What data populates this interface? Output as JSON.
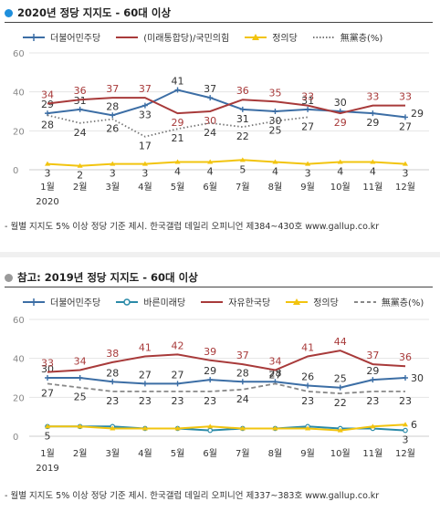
{
  "panel1": {
    "title": "2020년 정당 지지도 - 60대 이상",
    "bullet_color": "#1f8fdc",
    "note": "- 월별 지지도 5% 이상 정당 기준 제시. 한국갤럽 데일리 오피니언 제384~430호 www.gallup.co.kr",
    "chart_data": {
      "type": "line",
      "categories": [
        "1월",
        "2월",
        "3월",
        "4월",
        "5월",
        "6월",
        "7월",
        "8월",
        "9월",
        "10월",
        "11월",
        "12월"
      ],
      "year_label": "2020",
      "ylim": [
        0,
        60
      ],
      "yticks": [
        0,
        20,
        40,
        60
      ],
      "grid": true,
      "series": [
        {
          "name": "더불어민주당",
          "color": "#3c6ea5",
          "style": "plus",
          "values": [
            29,
            31,
            28,
            33,
            41,
            37,
            31,
            30,
            31,
            30,
            29,
            27
          ],
          "label_pos": [
            "above",
            "above",
            "above",
            "below",
            "above",
            "above",
            "below",
            "below",
            "above",
            "above",
            "below",
            "below"
          ]
        },
        {
          "name": "(미래통합당)/국민의힘",
          "color": "#a83a3a",
          "style": "solid",
          "values": [
            34,
            36,
            37,
            37,
            29,
            30,
            36,
            35,
            33,
            29,
            33,
            33
          ],
          "label_pos": [
            "above",
            "above",
            "above",
            "above",
            "below",
            "below",
            "above",
            "above",
            "above",
            "below",
            "above",
            "above"
          ]
        },
        {
          "name": "정의당",
          "color": "#f2c40f",
          "style": "triangle",
          "values": [
            3,
            2,
            3,
            3,
            4,
            4,
            5,
            4,
            3,
            4,
            4,
            3
          ],
          "label_pos": [
            "below",
            "below",
            "below",
            "below",
            "below",
            "below",
            "below",
            "below",
            "below",
            "below",
            "below",
            "below"
          ]
        },
        {
          "name": "無黨층(%)",
          "color": "#777777",
          "style": "dotted",
          "values": [
            28,
            24,
            26,
            17,
            21,
            24,
            22,
            25,
            27,
            null,
            null,
            null
          ],
          "label_pos": [
            "below",
            "below",
            "below",
            "below",
            "below",
            "below",
            "below",
            "below",
            "below",
            "below",
            "below",
            "below"
          ]
        }
      ],
      "extra_labels": [
        {
          "month_index": 11,
          "value": 29,
          "text": "29",
          "color": "#333333"
        }
      ]
    }
  },
  "panel2": {
    "title": "참고: 2019년 정당 지지도 - 60대 이상",
    "bullet_color": "#9a9a9a",
    "note": "- 월별 지지도 5% 이상 정당 기준 제시. 한국갤럽 데일리 오피니언 제337~383호 www.gallup.co.kr",
    "chart_data": {
      "type": "line",
      "categories": [
        "1월",
        "2월",
        "3월",
        "4월",
        "5월",
        "6월",
        "7월",
        "8월",
        "9월",
        "10월",
        "11월",
        "12월"
      ],
      "year_label": "2019",
      "ylim": [
        0,
        60
      ],
      "yticks": [
        0,
        20,
        40,
        60
      ],
      "grid": true,
      "series": [
        {
          "name": "더불어민주당",
          "color": "#3c6ea5",
          "style": "plus",
          "values": [
            30,
            30,
            28,
            27,
            27,
            29,
            28,
            28,
            26,
            25,
            29,
            30
          ],
          "label_pos": [
            "above",
            "none",
            "above",
            "above",
            "above",
            "above",
            "above",
            "above",
            "above",
            "above",
            "above",
            "right"
          ]
        },
        {
          "name": "바른미래당",
          "color": "#2a8aa8",
          "style": "circle",
          "values": [
            5,
            5,
            5,
            4,
            4,
            3,
            4,
            4,
            5,
            4,
            4,
            3
          ],
          "label_pos": [
            "below",
            "none",
            "none",
            "none",
            "none",
            "none",
            "none",
            "none",
            "none",
            "none",
            "none",
            "below"
          ]
        },
        {
          "name": "자유한국당",
          "color": "#a83a3a",
          "style": "solid",
          "values": [
            33,
            34,
            38,
            41,
            42,
            39,
            37,
            34,
            41,
            44,
            37,
            36
          ],
          "label_pos": [
            "above",
            "above",
            "above",
            "above",
            "above",
            "above",
            "above",
            "above",
            "above",
            "above",
            "above",
            "above"
          ]
        },
        {
          "name": "정의당",
          "color": "#f2c40f",
          "style": "triangle",
          "values": [
            5,
            5,
            4,
            4,
            4,
            5,
            4,
            4,
            4,
            3,
            5,
            6
          ],
          "label_pos": [
            "none",
            "none",
            "none",
            "none",
            "none",
            "none",
            "none",
            "none",
            "none",
            "none",
            "none",
            "right"
          ]
        },
        {
          "name": "無黨층(%)",
          "color": "#888888",
          "style": "dashed",
          "values": [
            27,
            25,
            23,
            23,
            23,
            23,
            24,
            27,
            23,
            22,
            23,
            23
          ],
          "label_pos": [
            "below",
            "below",
            "below",
            "below",
            "below",
            "below",
            "below",
            "above",
            "below",
            "below",
            "below",
            "below"
          ]
        }
      ]
    }
  }
}
